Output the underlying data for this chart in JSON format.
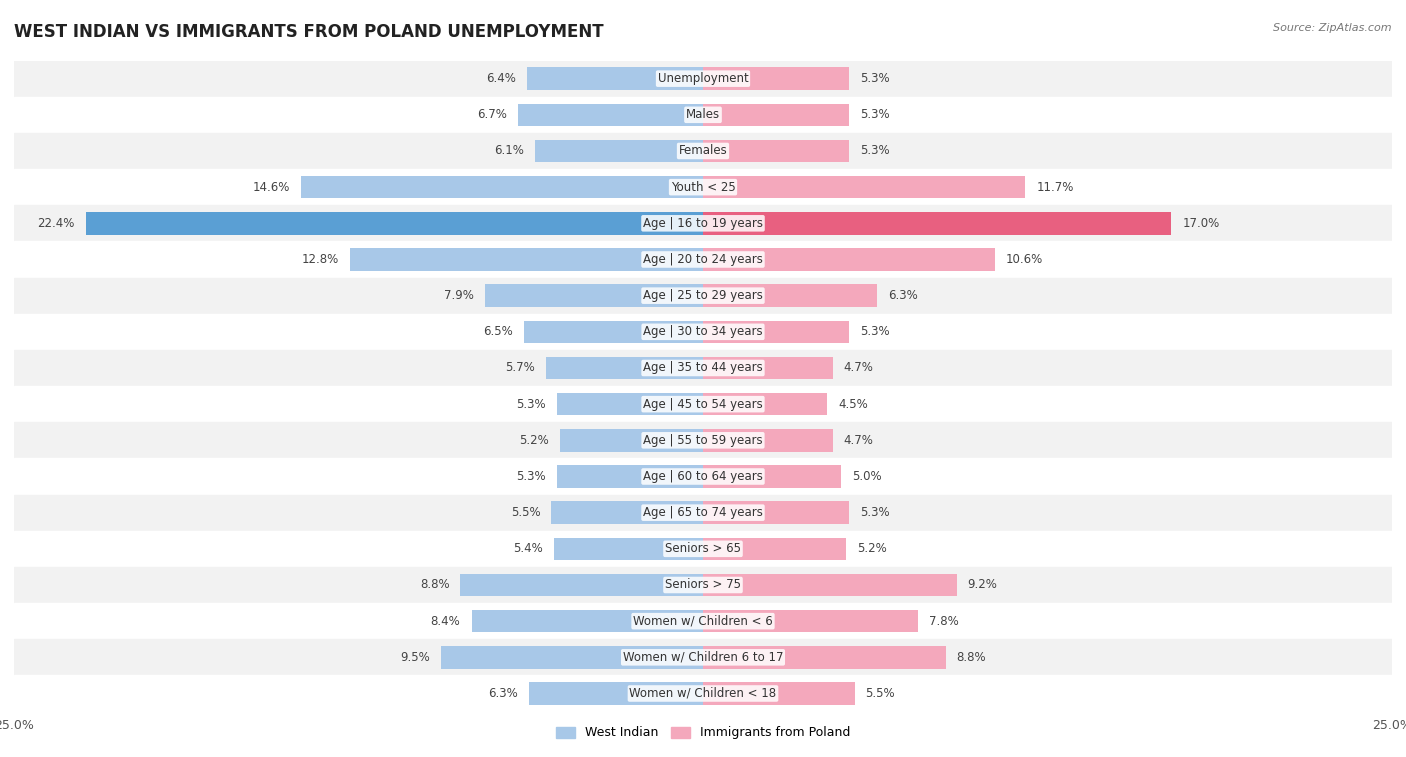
{
  "title": "WEST INDIAN VS IMMIGRANTS FROM POLAND UNEMPLOYMENT",
  "source": "Source: ZipAtlas.com",
  "categories": [
    "Unemployment",
    "Males",
    "Females",
    "Youth < 25",
    "Age | 16 to 19 years",
    "Age | 20 to 24 years",
    "Age | 25 to 29 years",
    "Age | 30 to 34 years",
    "Age | 35 to 44 years",
    "Age | 45 to 54 years",
    "Age | 55 to 59 years",
    "Age | 60 to 64 years",
    "Age | 65 to 74 years",
    "Seniors > 65",
    "Seniors > 75",
    "Women w/ Children < 6",
    "Women w/ Children 6 to 17",
    "Women w/ Children < 18"
  ],
  "west_indian": [
    6.4,
    6.7,
    6.1,
    14.6,
    22.4,
    12.8,
    7.9,
    6.5,
    5.7,
    5.3,
    5.2,
    5.3,
    5.5,
    5.4,
    8.8,
    8.4,
    9.5,
    6.3
  ],
  "poland": [
    5.3,
    5.3,
    5.3,
    11.7,
    17.0,
    10.6,
    6.3,
    5.3,
    4.7,
    4.5,
    4.7,
    5.0,
    5.3,
    5.2,
    9.2,
    7.8,
    8.8,
    5.5
  ],
  "west_indian_color": "#a8c8e8",
  "poland_color": "#f4a8bc",
  "highlight_west_indian_color": "#5a9fd4",
  "highlight_poland_color": "#e86080",
  "row_bg_even": "#f2f2f2",
  "row_bg_odd": "#ffffff",
  "axis_limit": 25.0,
  "bar_height": 0.62,
  "legend_west_indian": "West Indian",
  "legend_poland": "Immigrants from Poland",
  "title_fontsize": 12,
  "label_fontsize": 8.5,
  "value_fontsize": 8.5,
  "tick_fontsize": 9
}
